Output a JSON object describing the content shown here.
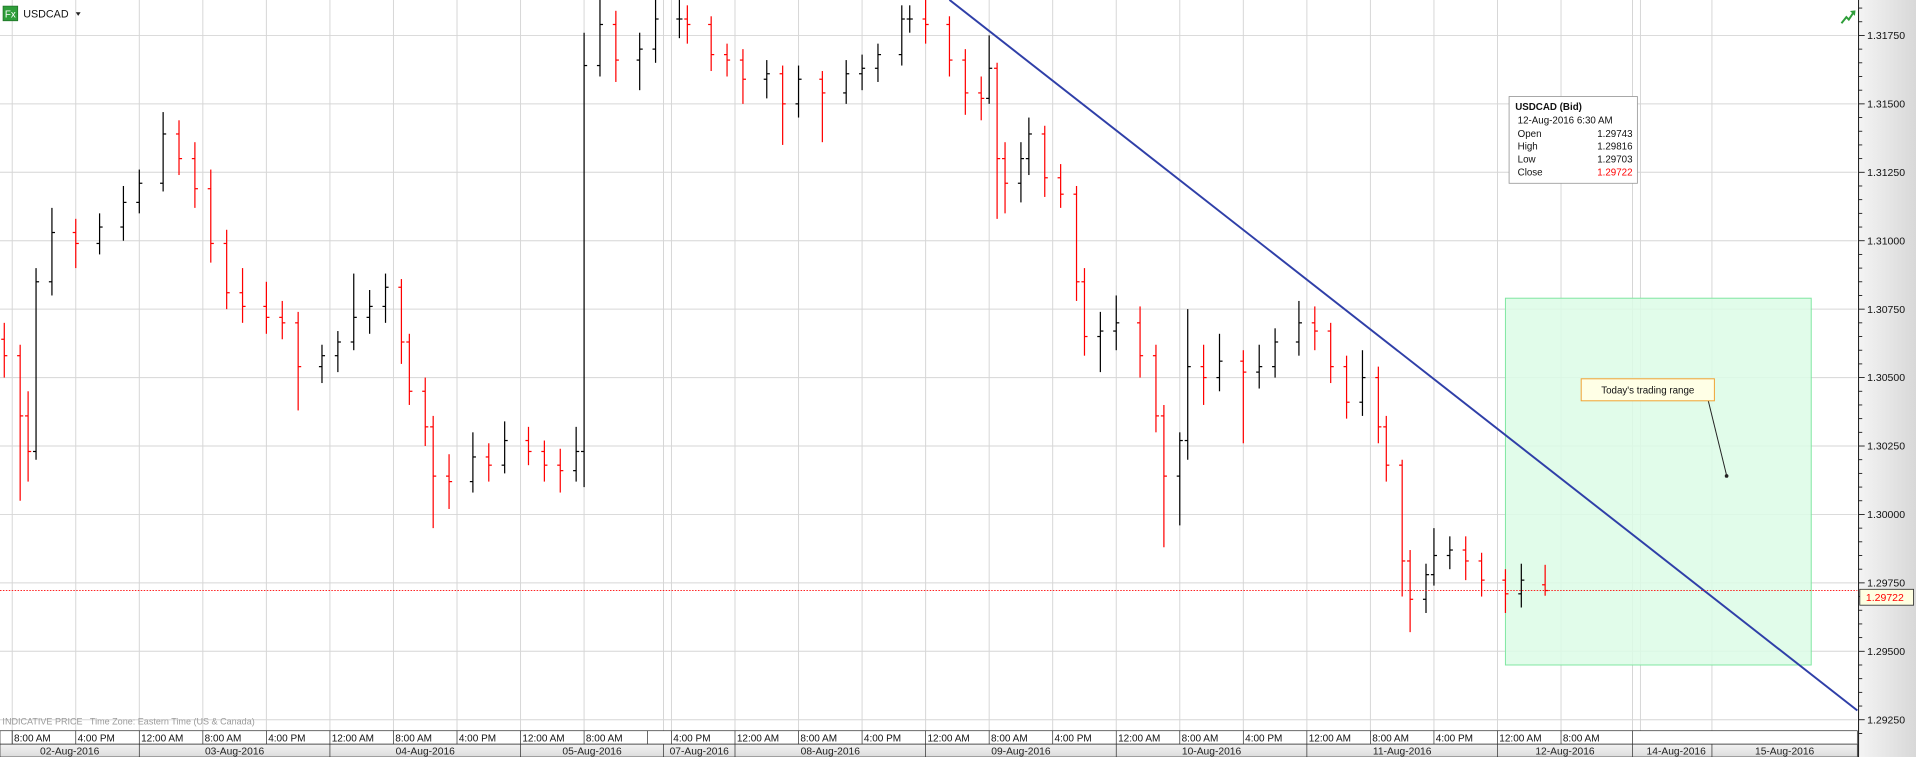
{
  "header": {
    "fx_badge": "Fx",
    "symbol": "USDCAD",
    "dropdown_icon": "caret-down-icon",
    "trend_icon": "trend-up-icon"
  },
  "colors": {
    "up_bar": "#000000",
    "down_bar": "#ff0000",
    "trendline": "#2f3fa8",
    "range_fill": "#dcfbe6",
    "range_stroke": "#7ee6a0",
    "current_price": "#ff0000",
    "fx_badge": "#2f9e3a"
  },
  "footer_note": "INDICATIVE PRICE   Time Zone: Eastern Time (US & Canada)",
  "current_price": "1.29722",
  "info_box": {
    "title": "USDCAD (Bid)",
    "datetime": "12-Aug-2016 6:30 AM",
    "rows": [
      {
        "label": "Open",
        "value": "1.29743"
      },
      {
        "label": "High",
        "value": "1.29816"
      },
      {
        "label": "Low",
        "value": "1.29703"
      },
      {
        "label": "Close",
        "value": "1.29722"
      }
    ]
  },
  "annotation": {
    "text": "Today's trading range"
  },
  "chart_data": {
    "type": "bar",
    "style": "ohlc",
    "symbol": "USDCAD",
    "ylim": [
      1.292,
      1.3188
    ],
    "y_ticks": [
      "1.29250",
      "1.29500",
      "1.29750",
      "1.30000",
      "1.30250",
      "1.30500",
      "1.30750",
      "1.31000",
      "1.31250",
      "1.31500",
      "1.31750"
    ],
    "grid": true,
    "x_ticks": [
      {
        "time": "08-02 08:00",
        "label": "8:00 AM"
      },
      {
        "time": "08-02 16:00",
        "label": "4:00 PM"
      },
      {
        "time": "08-03 00:00",
        "label": "12:00 AM"
      },
      {
        "time": "08-03 08:00",
        "label": "8:00 AM"
      },
      {
        "time": "08-03 16:00",
        "label": "4:00 PM"
      },
      {
        "time": "08-04 00:00",
        "label": "12:00 AM"
      },
      {
        "time": "08-04 08:00",
        "label": "8:00 AM"
      },
      {
        "time": "08-04 16:00",
        "label": "4:00 PM"
      },
      {
        "time": "08-05 00:00",
        "label": "12:00 AM"
      },
      {
        "time": "08-05 08:00",
        "label": "8:00 AM"
      },
      {
        "time": "08-07 16:00",
        "label": "4:00 PM"
      },
      {
        "time": "08-08 00:00",
        "label": "12:00 AM"
      },
      {
        "time": "08-08 08:00",
        "label": "8:00 AM"
      },
      {
        "time": "08-08 16:00",
        "label": "4:00 PM"
      },
      {
        "time": "08-09 00:00",
        "label": "12:00 AM"
      },
      {
        "time": "08-09 08:00",
        "label": "8:00 AM"
      },
      {
        "time": "08-09 16:00",
        "label": "4:00 PM"
      },
      {
        "time": "08-10 00:00",
        "label": "12:00 AM"
      },
      {
        "time": "08-10 08:00",
        "label": "8:00 AM"
      },
      {
        "time": "08-10 16:00",
        "label": "4:00 PM"
      },
      {
        "time": "08-11 00:00",
        "label": "12:00 AM"
      },
      {
        "time": "08-11 08:00",
        "label": "8:00 AM"
      },
      {
        "time": "08-11 16:00",
        "label": "4:00 PM"
      },
      {
        "time": "08-12 00:00",
        "label": "12:00 AM"
      },
      {
        "time": "08-12 08:00",
        "label": "8:00 AM"
      }
    ],
    "date_labels": [
      {
        "label": "02-Aug-2016",
        "start": "08-02 00:00",
        "end": "08-03 00:00"
      },
      {
        "label": "03-Aug-2016",
        "start": "08-03 00:00",
        "end": "08-04 00:00"
      },
      {
        "label": "04-Aug-2016",
        "start": "08-04 00:00",
        "end": "08-05 00:00"
      },
      {
        "label": "05-Aug-2016",
        "start": "08-05 00:00",
        "end": "08-05 18:00"
      },
      {
        "label": "07-Aug-2016",
        "start": "08-07 15:00",
        "end": "08-08 00:00"
      },
      {
        "label": "08-Aug-2016",
        "start": "08-08 00:00",
        "end": "08-09 00:00"
      },
      {
        "label": "09-Aug-2016",
        "start": "08-09 00:00",
        "end": "08-10 00:00"
      },
      {
        "label": "10-Aug-2016",
        "start": "08-10 00:00",
        "end": "08-11 00:00"
      },
      {
        "label": "11-Aug-2016",
        "start": "08-11 00:00",
        "end": "08-12 00:00"
      },
      {
        "label": "12-Aug-2016",
        "start": "08-12 00:00",
        "end": "08-12 17:00"
      },
      {
        "label": "14-Aug-2016",
        "start": "08-14 15:00",
        "end": "08-15 00:00"
      },
      {
        "label": "15-Aug-2016",
        "start": "08-15 00:00",
        "end": "08-16 00:00"
      }
    ],
    "bar_columns": [
      "time",
      "open",
      "high",
      "low",
      "close"
    ],
    "bars": [
      [
        "08-02 07:00",
        1.3064,
        1.307,
        1.305,
        1.3058
      ],
      [
        "08-02 09:00",
        1.3058,
        1.3062,
        1.3005,
        1.3036
      ],
      [
        "08-02 10:00",
        1.3036,
        1.3045,
        1.3012,
        1.3023
      ],
      [
        "08-02 11:00",
        1.3023,
        1.309,
        1.302,
        1.3085
      ],
      [
        "08-02 13:00",
        1.3085,
        1.3112,
        1.308,
        1.3103
      ],
      [
        "08-02 16:00",
        1.3103,
        1.3108,
        1.309,
        1.3099
      ],
      [
        "08-02 19:00",
        1.3099,
        1.311,
        1.3095,
        1.3105
      ],
      [
        "08-02 22:00",
        1.3105,
        1.312,
        1.31,
        1.3114
      ],
      [
        "08-03 00:00",
        1.3114,
        1.3126,
        1.311,
        1.3121
      ],
      [
        "08-03 03:00",
        1.3121,
        1.3147,
        1.3118,
        1.3139
      ],
      [
        "08-03 05:00",
        1.3139,
        1.3144,
        1.3124,
        1.313
      ],
      [
        "08-03 07:00",
        1.313,
        1.3136,
        1.3112,
        1.3119
      ],
      [
        "08-03 09:00",
        1.3119,
        1.3126,
        1.3092,
        1.3099
      ],
      [
        "08-03 11:00",
        1.3099,
        1.3104,
        1.3075,
        1.3081
      ],
      [
        "08-03 13:00",
        1.3081,
        1.309,
        1.307,
        1.3076
      ],
      [
        "08-03 16:00",
        1.3076,
        1.3085,
        1.3066,
        1.3072
      ],
      [
        "08-03 18:00",
        1.3072,
        1.3078,
        1.3064,
        1.307
      ],
      [
        "08-03 20:00",
        1.307,
        1.3074,
        1.3038,
        1.3054
      ],
      [
        "08-03 23:00",
        1.3054,
        1.3062,
        1.3048,
        1.3058
      ],
      [
        "08-04 01:00",
        1.3058,
        1.3067,
        1.3052,
        1.3063
      ],
      [
        "08-04 03:00",
        1.3063,
        1.3088,
        1.306,
        1.3072
      ],
      [
        "08-04 05:00",
        1.3072,
        1.3082,
        1.3066,
        1.3076
      ],
      [
        "08-04 07:00",
        1.3076,
        1.3088,
        1.307,
        1.3083
      ],
      [
        "08-04 09:00",
        1.3083,
        1.3086,
        1.3055,
        1.3063
      ],
      [
        "08-04 10:00",
        1.3063,
        1.3066,
        1.304,
        1.3045
      ],
      [
        "08-04 12:00",
        1.3045,
        1.305,
        1.3025,
        1.3032
      ],
      [
        "08-04 13:00",
        1.3032,
        1.3036,
        1.2995,
        1.3014
      ],
      [
        "08-04 15:00",
        1.3014,
        1.3022,
        1.3002,
        1.3012
      ],
      [
        "08-04 18:00",
        1.3012,
        1.303,
        1.3008,
        1.3021
      ],
      [
        "08-04 20:00",
        1.3021,
        1.3026,
        1.3012,
        1.3018
      ],
      [
        "08-04 22:00",
        1.3018,
        1.3034,
        1.3015,
        1.3027
      ],
      [
        "08-05 01:00",
        1.3027,
        1.3032,
        1.3018,
        1.3023
      ],
      [
        "08-05 03:00",
        1.3023,
        1.3027,
        1.3012,
        1.3018
      ],
      [
        "08-05 05:00",
        1.3018,
        1.3024,
        1.3008,
        1.3016
      ],
      [
        "08-05 07:00",
        1.3016,
        1.3032,
        1.3012,
        1.3023
      ],
      [
        "08-05 08:00",
        1.3023,
        1.3176,
        1.301,
        1.3164
      ],
      [
        "08-05 10:00",
        1.3164,
        1.3188,
        1.316,
        1.3179
      ],
      [
        "08-05 12:00",
        1.3179,
        1.3184,
        1.3158,
        1.3166
      ],
      [
        "08-05 15:00",
        1.3166,
        1.3176,
        1.3155,
        1.317
      ],
      [
        "08-05 17:00",
        1.317,
        1.3188,
        1.3165,
        1.3181
      ],
      [
        "08-07 17:00",
        1.3181,
        1.3188,
        1.3174,
        1.3181
      ],
      [
        "08-07 18:00",
        1.3181,
        1.3186,
        1.3172,
        1.3179
      ],
      [
        "08-07 21:00",
        1.3179,
        1.3182,
        1.3162,
        1.3168
      ],
      [
        "08-07 23:00",
        1.3168,
        1.3172,
        1.316,
        1.3166
      ],
      [
        "08-08 01:00",
        1.3166,
        1.317,
        1.315,
        1.3159
      ],
      [
        "08-08 04:00",
        1.3159,
        1.3166,
        1.3152,
        1.3161
      ],
      [
        "08-08 06:00",
        1.3161,
        1.3164,
        1.3135,
        1.315
      ],
      [
        "08-08 08:00",
        1.315,
        1.3164,
        1.3145,
        1.3159
      ],
      [
        "08-08 11:00",
        1.3159,
        1.3162,
        1.3136,
        1.3154
      ],
      [
        "08-08 14:00",
        1.3154,
        1.3166,
        1.315,
        1.3161
      ],
      [
        "08-08 16:00",
        1.3161,
        1.3168,
        1.3155,
        1.3163
      ],
      [
        "08-08 18:00",
        1.3163,
        1.3172,
        1.3158,
        1.3168
      ],
      [
        "08-08 21:00",
        1.3168,
        1.3186,
        1.3164,
        1.3181
      ],
      [
        "08-08 22:00",
        1.3181,
        1.3186,
        1.3176,
        1.3181
      ],
      [
        "08-09 00:00",
        1.3181,
        1.3188,
        1.3172,
        1.3179
      ],
      [
        "08-09 03:00",
        1.3179,
        1.3182,
        1.316,
        1.3166
      ],
      [
        "08-09 05:00",
        1.3166,
        1.317,
        1.3146,
        1.3154
      ],
      [
        "08-09 07:00",
        1.3154,
        1.316,
        1.3144,
        1.3152
      ],
      [
        "08-09 08:00",
        1.3152,
        1.3175,
        1.315,
        1.3163
      ],
      [
        "08-09 09:00",
        1.3163,
        1.3165,
        1.3108,
        1.313
      ],
      [
        "08-09 10:00",
        1.313,
        1.3136,
        1.311,
        1.3121
      ],
      [
        "08-09 12:00",
        1.3121,
        1.3136,
        1.3114,
        1.313
      ],
      [
        "08-09 13:00",
        1.313,
        1.3145,
        1.3124,
        1.3139
      ],
      [
        "08-09 15:00",
        1.3139,
        1.3142,
        1.3116,
        1.3123
      ],
      [
        "08-09 17:00",
        1.3123,
        1.3128,
        1.3112,
        1.3117
      ],
      [
        "08-09 19:00",
        1.3117,
        1.312,
        1.3078,
        1.3085
      ],
      [
        "08-09 20:00",
        1.3085,
        1.309,
        1.3058,
        1.3065
      ],
      [
        "08-09 22:00",
        1.3065,
        1.3074,
        1.3052,
        1.3067
      ],
      [
        "08-10 00:00",
        1.3067,
        1.308,
        1.306,
        1.307
      ],
      [
        "08-10 03:00",
        1.307,
        1.3076,
        1.305,
        1.3058
      ],
      [
        "08-10 05:00",
        1.3058,
        1.3062,
        1.303,
        1.3036
      ],
      [
        "08-10 06:00",
        1.3036,
        1.304,
        1.2988,
        1.3014
      ],
      [
        "08-10 08:00",
        1.3014,
        1.303,
        1.2996,
        1.3027
      ],
      [
        "08-10 09:00",
        1.3027,
        1.3075,
        1.302,
        1.3054
      ],
      [
        "08-10 11:00",
        1.3054,
        1.3062,
        1.304,
        1.305
      ],
      [
        "08-10 13:00",
        1.305,
        1.3066,
        1.3045,
        1.3056
      ],
      [
        "08-10 16:00",
        1.3056,
        1.306,
        1.3026,
        1.3052
      ],
      [
        "08-10 18:00",
        1.3052,
        1.3062,
        1.3046,
        1.3054
      ],
      [
        "08-10 20:00",
        1.3054,
        1.3068,
        1.305,
        1.3063
      ],
      [
        "08-10 23:00",
        1.3063,
        1.3078,
        1.3058,
        1.307
      ],
      [
        "08-11 01:00",
        1.307,
        1.3076,
        1.306,
        1.3067
      ],
      [
        "08-11 03:00",
        1.3067,
        1.307,
        1.3048,
        1.3054
      ],
      [
        "08-11 05:00",
        1.3054,
        1.3058,
        1.3035,
        1.3041
      ],
      [
        "08-11 07:00",
        1.3041,
        1.306,
        1.3036,
        1.305
      ],
      [
        "08-11 09:00",
        1.305,
        1.3054,
        1.3026,
        1.3032
      ],
      [
        "08-11 10:00",
        1.3032,
        1.3036,
        1.3012,
        1.3018
      ],
      [
        "08-11 12:00",
        1.3018,
        1.302,
        1.297,
        1.2983
      ],
      [
        "08-11 13:00",
        1.2983,
        1.2987,
        1.2957,
        1.2969
      ],
      [
        "08-11 15:00",
        1.2969,
        1.2982,
        1.2964,
        1.2978
      ],
      [
        "08-11 16:00",
        1.2978,
        1.2995,
        1.2974,
        1.2985
      ],
      [
        "08-11 18:00",
        1.2985,
        1.2992,
        1.298,
        1.2987
      ],
      [
        "08-11 20:00",
        1.2987,
        1.2992,
        1.2976,
        1.2983
      ],
      [
        "08-11 22:00",
        1.2983,
        1.2986,
        1.297,
        1.2976
      ],
      [
        "08-12 01:00",
        1.2976,
        1.298,
        1.2964,
        1.2971
      ],
      [
        "08-12 03:00",
        1.2971,
        1.2982,
        1.2966,
        1.2976
      ],
      [
        "08-12 06:00",
        1.29743,
        1.29816,
        1.29703,
        1.29722
      ]
    ],
    "trendline": [
      {
        "time": "08-09 03:00",
        "price": 1.3188
      },
      {
        "time": "08-12 01:00",
        "price": 1.3029
      }
    ],
    "shaded_region": {
      "label": "Today's trading range",
      "start": "08-12 01:00",
      "end": "08-15 12:30",
      "top": 1.3079,
      "bottom": 1.2945
    },
    "current_price_line": 1.29722
  }
}
